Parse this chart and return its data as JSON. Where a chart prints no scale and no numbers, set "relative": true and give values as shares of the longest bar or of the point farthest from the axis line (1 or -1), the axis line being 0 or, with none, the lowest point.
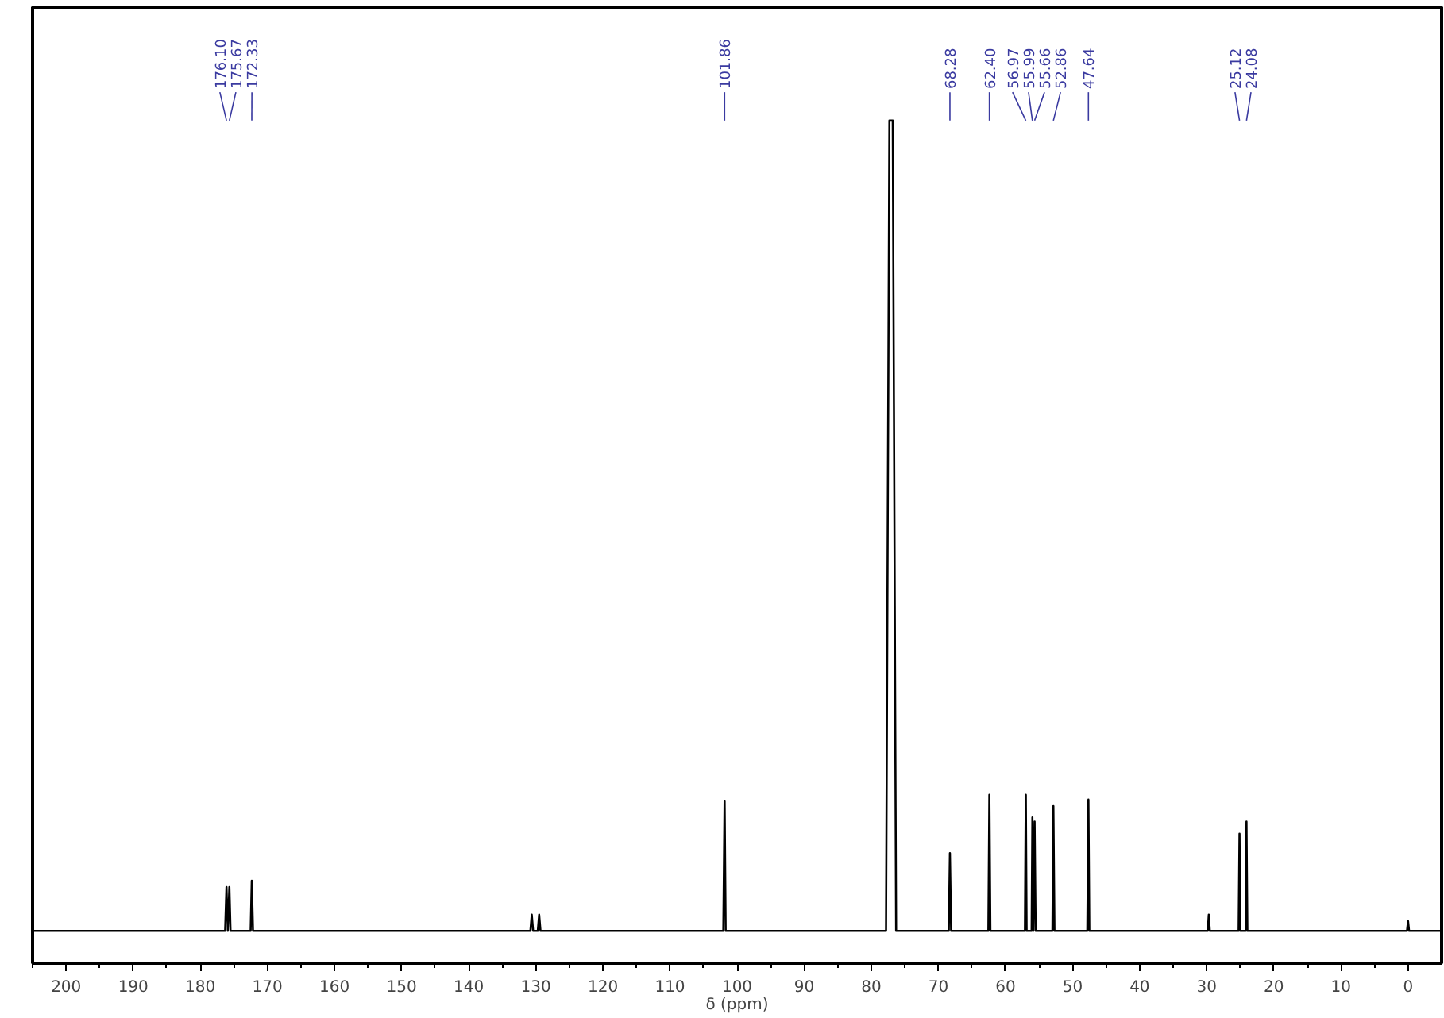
{
  "chart_data": {
    "type": "line",
    "relative": true,
    "xlabel": "δ (ppm)",
    "xlim": [
      205,
      -5
    ],
    "xticks": [
      200,
      190,
      180,
      170,
      160,
      150,
      140,
      130,
      120,
      110,
      100,
      90,
      80,
      70,
      60,
      50,
      40,
      30,
      20,
      10,
      0
    ],
    "grid": false,
    "marker": "none",
    "line_style": "solid",
    "series": [
      {
        "color": "#000000",
        "x": [
          205,
          176.3,
          176.1,
          175.9,
          175.67,
          175.5,
          172.5,
          172.33,
          172.15,
          130.8,
          130.6,
          130.4,
          129.7,
          129.5,
          129.3,
          102.05,
          101.86,
          101.7,
          77.8,
          77.3,
          76.8,
          76.3,
          68.45,
          68.28,
          68.1,
          62.55,
          62.4,
          62.25,
          57.1,
          56.97,
          56.85,
          56.1,
          55.99,
          55.85,
          55.66,
          55.5,
          53.0,
          52.86,
          52.7,
          47.8,
          47.64,
          47.5,
          29.85,
          29.7,
          29.55,
          25.25,
          25.12,
          25.0,
          24.2,
          24.08,
          23.95,
          0.15,
          0,
          -0.15,
          -5
        ],
        "values": [
          0,
          0,
          0.054,
          0,
          0.054,
          0,
          0,
          0.062,
          0,
          0,
          0.02,
          0,
          0,
          0.02,
          0,
          0,
          0.16,
          0,
          0,
          1,
          1,
          0,
          0,
          0.096,
          0,
          0,
          0.168,
          0,
          0,
          0.168,
          0,
          0,
          0.14,
          0,
          0.135,
          0,
          0,
          0.154,
          0,
          0,
          0.162,
          0,
          0,
          0.02,
          0,
          0,
          0.12,
          0,
          0,
          0.135,
          0,
          0,
          0.012,
          0,
          0
        ]
      }
    ],
    "annotations": [
      {
        "text": "176.10",
        "x": 176.1
      },
      {
        "text": "175.67",
        "x": 175.67
      },
      {
        "text": "172.33",
        "x": 172.33
      },
      {
        "text": "101.86",
        "x": 101.86
      },
      {
        "text": "68.28",
        "x": 68.28
      },
      {
        "text": "62.40",
        "x": 62.4
      },
      {
        "text": "56.97",
        "x": 56.97
      },
      {
        "text": "55.99",
        "x": 55.99
      },
      {
        "text": "55.66",
        "x": 55.66
      },
      {
        "text": "52.86",
        "x": 52.86
      },
      {
        "text": "47.64",
        "x": 47.64
      },
      {
        "text": "25.12",
        "x": 25.12
      },
      {
        "text": "24.08",
        "x": 24.08
      }
    ]
  }
}
